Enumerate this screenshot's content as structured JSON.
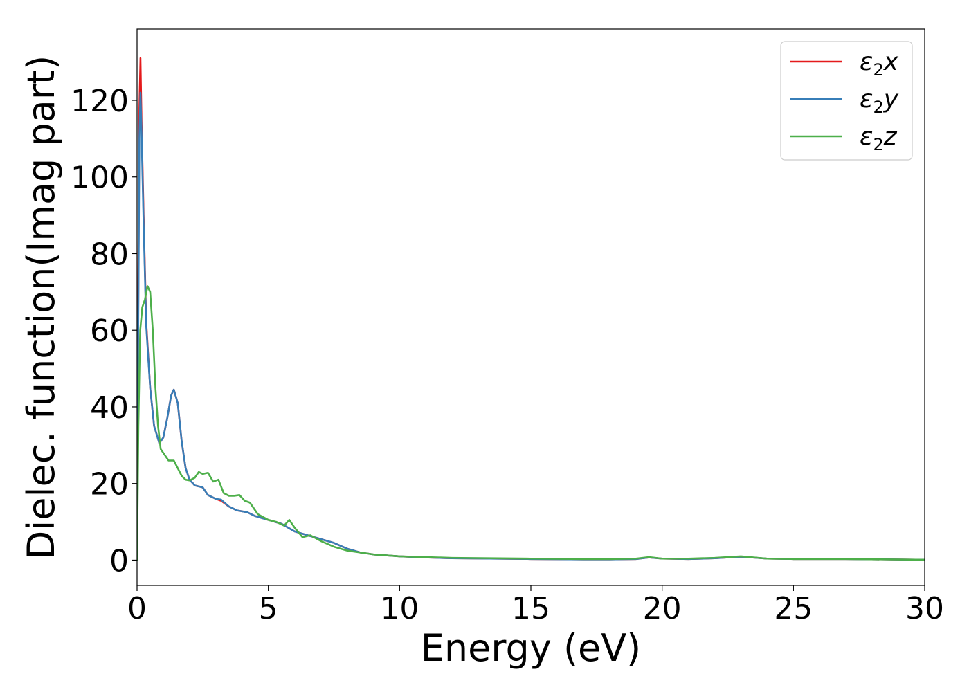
{
  "chart_data": {
    "type": "line",
    "title": "",
    "xlabel": "Energy (eV)",
    "ylabel": "Dielec. function(Imag part)",
    "xlim": [
      0,
      30
    ],
    "ylim": [
      -6.6,
      138.6
    ],
    "xticks": [
      0,
      5,
      10,
      15,
      20,
      25,
      30
    ],
    "yticks": [
      0,
      20,
      40,
      60,
      80,
      100,
      120
    ],
    "grid": false,
    "legend_position": "top-right",
    "series": [
      {
        "name": "ε₂x",
        "legend_base": "ε",
        "legend_sub": "2",
        "legend_var": "x",
        "color": "#e41a1c",
        "points": [
          [
            0,
            0
          ],
          [
            0.04,
            60
          ],
          [
            0.09,
            118
          ],
          [
            0.13,
            131
          ],
          [
            0.17,
            115
          ],
          [
            0.25,
            90
          ],
          [
            0.35,
            62
          ],
          [
            0.5,
            45
          ],
          [
            0.65,
            35
          ],
          [
            0.85,
            30.5
          ],
          [
            1.0,
            32
          ],
          [
            1.15,
            37
          ],
          [
            1.3,
            43
          ],
          [
            1.4,
            44.5
          ],
          [
            1.55,
            41
          ],
          [
            1.7,
            31
          ],
          [
            1.85,
            24
          ],
          [
            2.0,
            21
          ],
          [
            2.2,
            19.5
          ],
          [
            2.5,
            19
          ],
          [
            2.7,
            17
          ],
          [
            3.0,
            16
          ],
          [
            3.2,
            15.5
          ],
          [
            3.5,
            14
          ],
          [
            3.8,
            13
          ],
          [
            4.2,
            12.5
          ],
          [
            4.5,
            11.5
          ],
          [
            5.0,
            10.5
          ],
          [
            5.5,
            9.5
          ],
          [
            6.0,
            7.5
          ],
          [
            6.5,
            6.5
          ],
          [
            7.0,
            5.5
          ],
          [
            7.5,
            4.5
          ],
          [
            8.0,
            3
          ],
          [
            8.5,
            2
          ],
          [
            9.0,
            1.5
          ],
          [
            10,
            1
          ],
          [
            11,
            0.7
          ],
          [
            12,
            0.5
          ],
          [
            15,
            0.3
          ],
          [
            17,
            0.2
          ],
          [
            18,
            0.2
          ],
          [
            19,
            0.3
          ],
          [
            19.5,
            0.7
          ],
          [
            20,
            0.4
          ],
          [
            21,
            0.3
          ],
          [
            22,
            0.5
          ],
          [
            23,
            0.9
          ],
          [
            24,
            0.4
          ],
          [
            25,
            0.3
          ],
          [
            27,
            0.3
          ],
          [
            30,
            0.1
          ]
        ]
      },
      {
        "name": "ε₂y",
        "legend_base": "ε",
        "legend_sub": "2",
        "legend_var": "y",
        "color": "#377eb8",
        "points": [
          [
            0,
            0
          ],
          [
            0.04,
            55
          ],
          [
            0.09,
            110
          ],
          [
            0.13,
            122
          ],
          [
            0.17,
            112
          ],
          [
            0.25,
            88
          ],
          [
            0.35,
            61
          ],
          [
            0.5,
            45
          ],
          [
            0.65,
            35
          ],
          [
            0.85,
            30.5
          ],
          [
            1.0,
            32
          ],
          [
            1.15,
            37
          ],
          [
            1.3,
            43
          ],
          [
            1.4,
            44.5
          ],
          [
            1.55,
            41
          ],
          [
            1.7,
            31
          ],
          [
            1.85,
            24
          ],
          [
            2.0,
            21
          ],
          [
            2.2,
            19.5
          ],
          [
            2.5,
            19
          ],
          [
            2.7,
            17
          ],
          [
            3.0,
            16
          ],
          [
            3.2,
            15.8
          ],
          [
            3.5,
            14
          ],
          [
            3.8,
            13
          ],
          [
            4.2,
            12.5
          ],
          [
            4.5,
            11.5
          ],
          [
            5.0,
            10.5
          ],
          [
            5.5,
            9.5
          ],
          [
            6.0,
            7.5
          ],
          [
            6.5,
            6.5
          ],
          [
            7.0,
            5.5
          ],
          [
            7.5,
            4.5
          ],
          [
            8.0,
            3
          ],
          [
            8.5,
            2
          ],
          [
            9.0,
            1.5
          ],
          [
            10,
            1
          ],
          [
            11,
            0.7
          ],
          [
            12,
            0.5
          ],
          [
            15,
            0.3
          ],
          [
            17,
            0.2
          ],
          [
            18,
            0.2
          ],
          [
            19,
            0.3
          ],
          [
            19.5,
            0.7
          ],
          [
            20,
            0.4
          ],
          [
            21,
            0.3
          ],
          [
            22,
            0.5
          ],
          [
            23,
            0.9
          ],
          [
            24,
            0.4
          ],
          [
            25,
            0.3
          ],
          [
            27,
            0.3
          ],
          [
            30,
            0.1
          ]
        ]
      },
      {
        "name": "ε₂z",
        "legend_base": "ε",
        "legend_sub": "2",
        "legend_var": "z",
        "color": "#4daf4a",
        "points": [
          [
            0,
            0
          ],
          [
            0.05,
            35
          ],
          [
            0.12,
            60
          ],
          [
            0.2,
            66
          ],
          [
            0.3,
            68
          ],
          [
            0.4,
            71.5
          ],
          [
            0.5,
            70
          ],
          [
            0.6,
            60
          ],
          [
            0.7,
            45
          ],
          [
            0.8,
            35
          ],
          [
            0.9,
            29
          ],
          [
            1.05,
            27.5
          ],
          [
            1.2,
            26
          ],
          [
            1.4,
            26
          ],
          [
            1.55,
            24
          ],
          [
            1.7,
            22
          ],
          [
            1.85,
            21
          ],
          [
            2.0,
            20.8
          ],
          [
            2.2,
            21.5
          ],
          [
            2.35,
            23
          ],
          [
            2.5,
            22.5
          ],
          [
            2.7,
            22.8
          ],
          [
            2.9,
            20.5
          ],
          [
            3.1,
            21
          ],
          [
            3.3,
            17.5
          ],
          [
            3.5,
            16.8
          ],
          [
            3.7,
            16.8
          ],
          [
            3.9,
            17
          ],
          [
            4.1,
            15.5
          ],
          [
            4.3,
            15
          ],
          [
            4.6,
            12
          ],
          [
            5.0,
            10.5
          ],
          [
            5.3,
            10
          ],
          [
            5.6,
            9
          ],
          [
            5.8,
            10.5
          ],
          [
            6.0,
            8.5
          ],
          [
            6.3,
            6
          ],
          [
            6.6,
            6.5
          ],
          [
            7.0,
            5
          ],
          [
            7.5,
            3.5
          ],
          [
            8.0,
            2.5
          ],
          [
            8.5,
            2
          ],
          [
            9.0,
            1.5
          ],
          [
            10,
            1
          ],
          [
            11,
            0.8
          ],
          [
            12,
            0.6
          ],
          [
            15,
            0.4
          ],
          [
            17,
            0.3
          ],
          [
            18,
            0.3
          ],
          [
            19,
            0.4
          ],
          [
            19.5,
            0.8
          ],
          [
            20,
            0.4
          ],
          [
            21,
            0.4
          ],
          [
            22,
            0.6
          ],
          [
            23,
            1.0
          ],
          [
            24,
            0.4
          ],
          [
            25,
            0.3
          ],
          [
            27,
            0.3
          ],
          [
            30,
            0.1
          ]
        ]
      }
    ]
  }
}
